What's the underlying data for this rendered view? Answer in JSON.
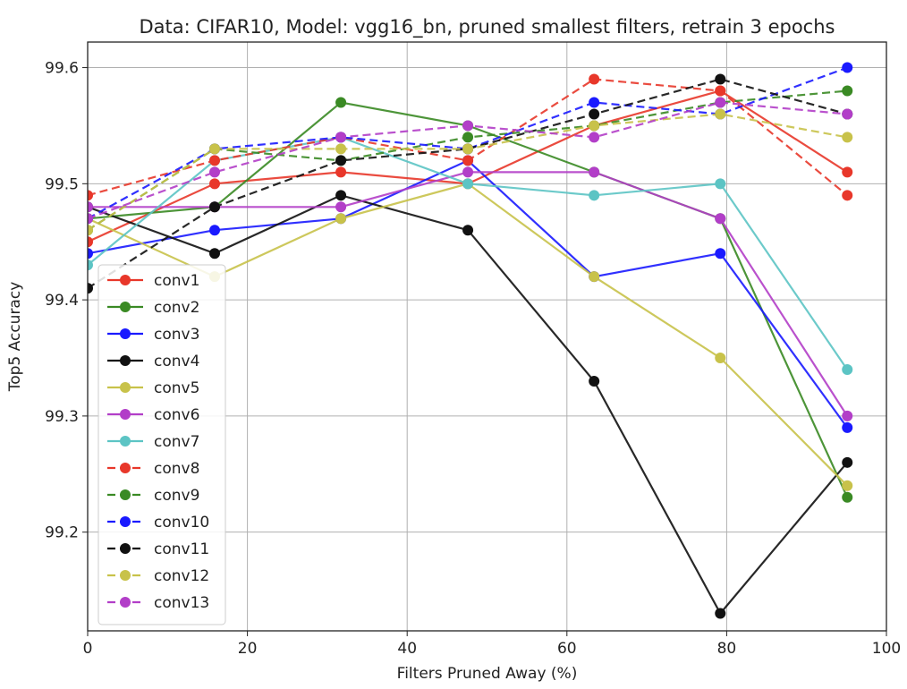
{
  "chart_data": {
    "type": "line",
    "title": "Data: CIFAR10, Model: vgg16_bn, pruned smallest filters, retrain 3 epochs",
    "xlabel": "Filters Pruned Away (%)",
    "ylabel": "Top5 Accuracy",
    "xlim": [
      0,
      100
    ],
    "ylim": [
      99.115,
      99.622
    ],
    "xticks": [
      0,
      20,
      40,
      60,
      80,
      100
    ],
    "yticks": [
      99.2,
      99.3,
      99.4,
      99.5,
      99.6
    ],
    "grid": true,
    "legend_position": "lower-left",
    "x": [
      0,
      15.9,
      31.7,
      47.6,
      63.4,
      79.2,
      95.1
    ],
    "series": [
      {
        "name": "conv1",
        "color": "#e8372a",
        "dash": "solid",
        "values": [
          99.45,
          99.5,
          99.51,
          99.5,
          99.55,
          99.58,
          99.51
        ]
      },
      {
        "name": "conv2",
        "color": "#3a8a24",
        "dash": "solid",
        "values": [
          99.47,
          99.48,
          99.57,
          99.55,
          99.51,
          99.47,
          99.23
        ]
      },
      {
        "name": "conv3",
        "color": "#1a1aff",
        "dash": "solid",
        "values": [
          99.44,
          99.46,
          99.47,
          99.52,
          99.42,
          99.44,
          99.29
        ]
      },
      {
        "name": "conv4",
        "color": "#111111",
        "dash": "solid",
        "values": [
          99.48,
          99.44,
          99.49,
          99.46,
          99.33,
          99.13,
          99.26
        ]
      },
      {
        "name": "conv5",
        "color": "#c8c24a",
        "dash": "solid",
        "values": [
          99.47,
          99.42,
          99.47,
          99.5,
          99.42,
          99.35,
          99.24
        ]
      },
      {
        "name": "conv6",
        "color": "#b23ec8",
        "dash": "solid",
        "values": [
          99.48,
          99.48,
          99.48,
          99.51,
          99.51,
          99.47,
          99.3
        ]
      },
      {
        "name": "conv7",
        "color": "#5cc4c4",
        "dash": "solid",
        "values": [
          99.43,
          99.52,
          99.54,
          99.5,
          99.49,
          99.5,
          99.34
        ]
      },
      {
        "name": "conv8",
        "color": "#e8372a",
        "dash": "dashed",
        "values": [
          99.49,
          99.52,
          99.54,
          99.52,
          99.59,
          99.58,
          99.49
        ]
      },
      {
        "name": "conv9",
        "color": "#3a8a24",
        "dash": "dashed",
        "values": [
          99.46,
          99.53,
          99.52,
          99.54,
          99.55,
          99.57,
          99.58
        ]
      },
      {
        "name": "conv10",
        "color": "#1a1aff",
        "dash": "dashed",
        "values": [
          99.47,
          99.53,
          99.54,
          99.53,
          99.57,
          99.56,
          99.6
        ]
      },
      {
        "name": "conv11",
        "color": "#111111",
        "dash": "dashed",
        "values": [
          99.41,
          99.48,
          99.52,
          99.53,
          99.56,
          99.59,
          99.56
        ]
      },
      {
        "name": "conv12",
        "color": "#c8c24a",
        "dash": "dashed",
        "values": [
          99.46,
          99.53,
          99.53,
          99.53,
          99.55,
          99.56,
          99.54
        ]
      },
      {
        "name": "conv13",
        "color": "#b23ec8",
        "dash": "dashed",
        "values": [
          99.47,
          99.51,
          99.54,
          99.55,
          99.54,
          99.57,
          99.56
        ]
      }
    ]
  }
}
